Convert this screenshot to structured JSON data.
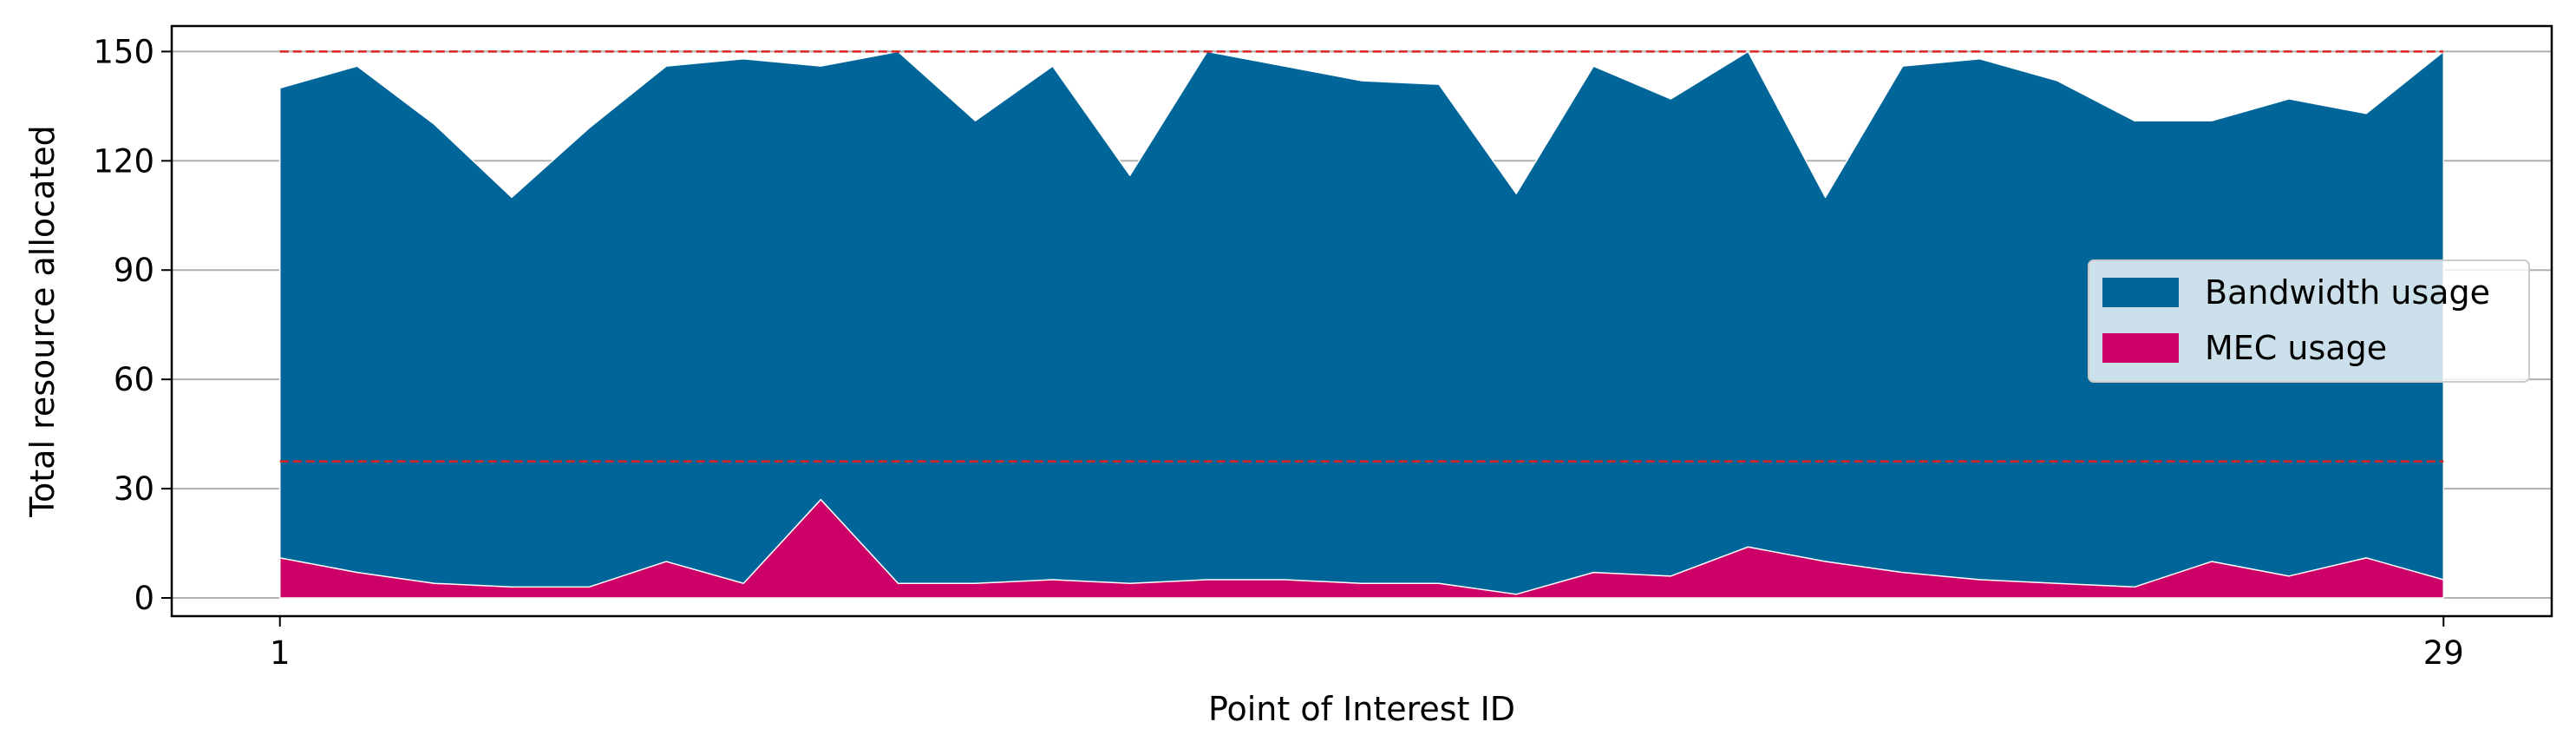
{
  "chart_data": {
    "type": "area",
    "stacked": false,
    "title": "",
    "xlabel": "Point of Interest ID",
    "ylabel": "Total resource allocated",
    "x": [
      1,
      2,
      3,
      4,
      5,
      6,
      7,
      8,
      9,
      10,
      11,
      12,
      13,
      14,
      15,
      16,
      17,
      18,
      19,
      20,
      21,
      22,
      23,
      24,
      25,
      26,
      27,
      28,
      29
    ],
    "xticks": [
      "1",
      "29"
    ],
    "xlim": [
      -0.4,
      30.4
    ],
    "ylim": [
      -5,
      157
    ],
    "yticks": [
      "0",
      "30",
      "60",
      "90",
      "120",
      "150"
    ],
    "grid": "horizontal",
    "legend_position": "center-right",
    "series": [
      {
        "name": "Bandwidth usage",
        "color": "#006699",
        "values": [
          140,
          146,
          130,
          110,
          129,
          146,
          148,
          146,
          150,
          131,
          146,
          116,
          150,
          146,
          142,
          141,
          111,
          146,
          137,
          150,
          110,
          146,
          148,
          142,
          131,
          131,
          137,
          133,
          150
        ]
      },
      {
        "name": "MEC usage",
        "color": "#cc0066",
        "values": [
          11,
          7,
          4,
          3,
          3,
          10,
          4,
          27,
          4,
          4,
          5,
          4,
          5,
          5,
          4,
          4,
          1,
          7,
          6,
          14,
          10,
          7,
          5,
          4,
          3,
          10,
          6,
          11,
          5
        ]
      }
    ],
    "reference_lines": [
      {
        "y": 150,
        "color": "#dd2222",
        "style": "dashed"
      },
      {
        "y": 37.5,
        "color": "#dd2222",
        "style": "dashed"
      }
    ]
  }
}
